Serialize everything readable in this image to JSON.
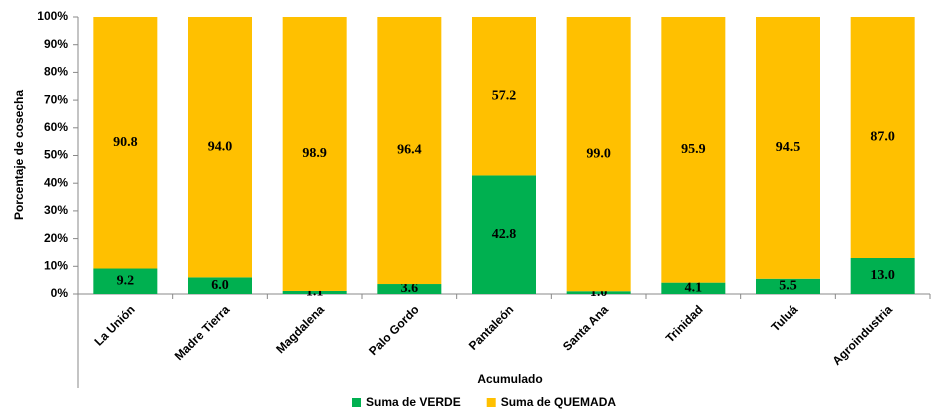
{
  "chart_data": {
    "type": "stacked_bar_100",
    "x_label": "Acumulado",
    "y_label": "Porcentaje de cosecha",
    "categories": [
      "La Unión",
      "Madre Tierra",
      "Magdalena",
      "Palo Gordo",
      "Pantaleón",
      "Santa Ana",
      "Trinidad",
      "Tuluá",
      "Agroindustria"
    ],
    "series": [
      {
        "name": "Suma de VERDE",
        "color": "#00b050",
        "values": [
          9.2,
          6,
          1.1,
          3.6,
          42.8,
          1,
          4.1,
          5.5,
          13
        ],
        "value_labels": [
          "9.2",
          "6.0",
          "1.1",
          "3.6",
          "42.8",
          "1.0",
          "4.1",
          "5.5",
          "13.0"
        ]
      },
      {
        "name": "Suma de QUEMADA",
        "color": "#ffc000",
        "values": [
          90.8,
          94,
          98.9,
          96.4,
          57.2,
          99,
          95.9,
          94.5,
          87
        ],
        "value_labels": [
          "90.8",
          "94.0",
          "98.9",
          "96.4",
          "57.2",
          "99.0",
          "95.9",
          "94.5",
          "87.0"
        ]
      }
    ],
    "ylim": [
      0,
      100
    ],
    "yticks": [
      {
        "value": 0,
        "label": "0%"
      },
      {
        "value": 10,
        "label": "10%"
      },
      {
        "value": 20,
        "label": "20%"
      },
      {
        "value": 30,
        "label": "30%"
      },
      {
        "value": 40,
        "label": "40%"
      },
      {
        "value": 50,
        "label": "50%"
      },
      {
        "value": 60,
        "label": "60%"
      },
      {
        "value": 70,
        "label": "70%"
      },
      {
        "value": 80,
        "label": "80%"
      },
      {
        "value": 90,
        "label": "90%"
      },
      {
        "value": 100,
        "label": "100%"
      }
    ],
    "legend": "bottom"
  }
}
